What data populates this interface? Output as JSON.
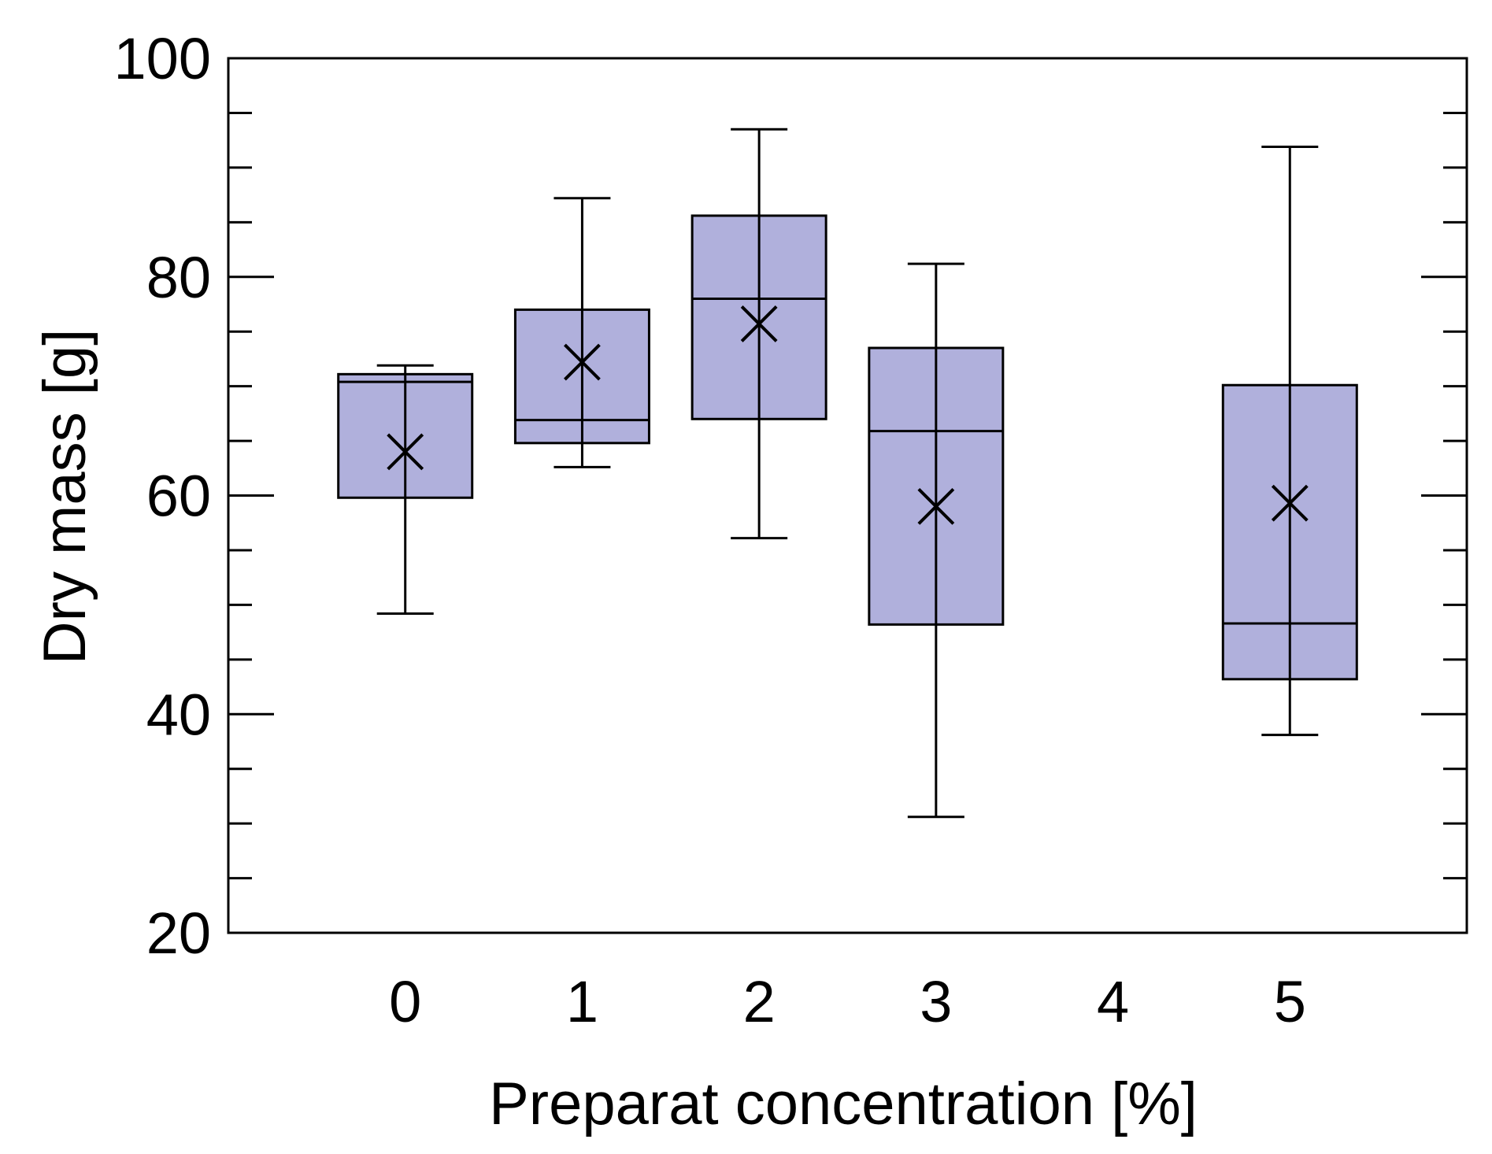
{
  "chart_data": {
    "type": "box",
    "xlabel": "Preparat concentration [%]",
    "ylabel": "Dry mass [g]",
    "ylim": [
      20,
      100
    ],
    "yticks": [
      20,
      40,
      60,
      80,
      100
    ],
    "y_minor_step": 5,
    "xlim": [
      -1,
      6
    ],
    "xticks": [
      0,
      1,
      2,
      3,
      4,
      5
    ],
    "grid": false,
    "legend": "none",
    "colors": {
      "box_fill": "#b0b0dc",
      "stroke": "#000000"
    },
    "boxes": [
      {
        "x": 0,
        "whisker_low": 49.2,
        "q1": 59.8,
        "median": 70.4,
        "q3": 71.1,
        "whisker_high": 71.9,
        "mean": 64.0
      },
      {
        "x": 1,
        "whisker_low": 62.6,
        "q1": 64.8,
        "median": 66.9,
        "q3": 77.0,
        "whisker_high": 87.2,
        "mean": 72.2
      },
      {
        "x": 2,
        "whisker_low": 56.1,
        "q1": 67.0,
        "median": 78.0,
        "q3": 85.6,
        "whisker_high": 93.5,
        "mean": 75.7
      },
      {
        "x": 3,
        "whisker_low": 30.6,
        "q1": 48.2,
        "median": 65.9,
        "q3": 73.5,
        "whisker_high": 81.2,
        "mean": 59.0
      },
      {
        "x": 5,
        "whisker_low": 38.1,
        "q1": 43.2,
        "median": 48.3,
        "q3": 70.1,
        "whisker_high": 91.9,
        "mean": 59.3
      }
    ]
  }
}
